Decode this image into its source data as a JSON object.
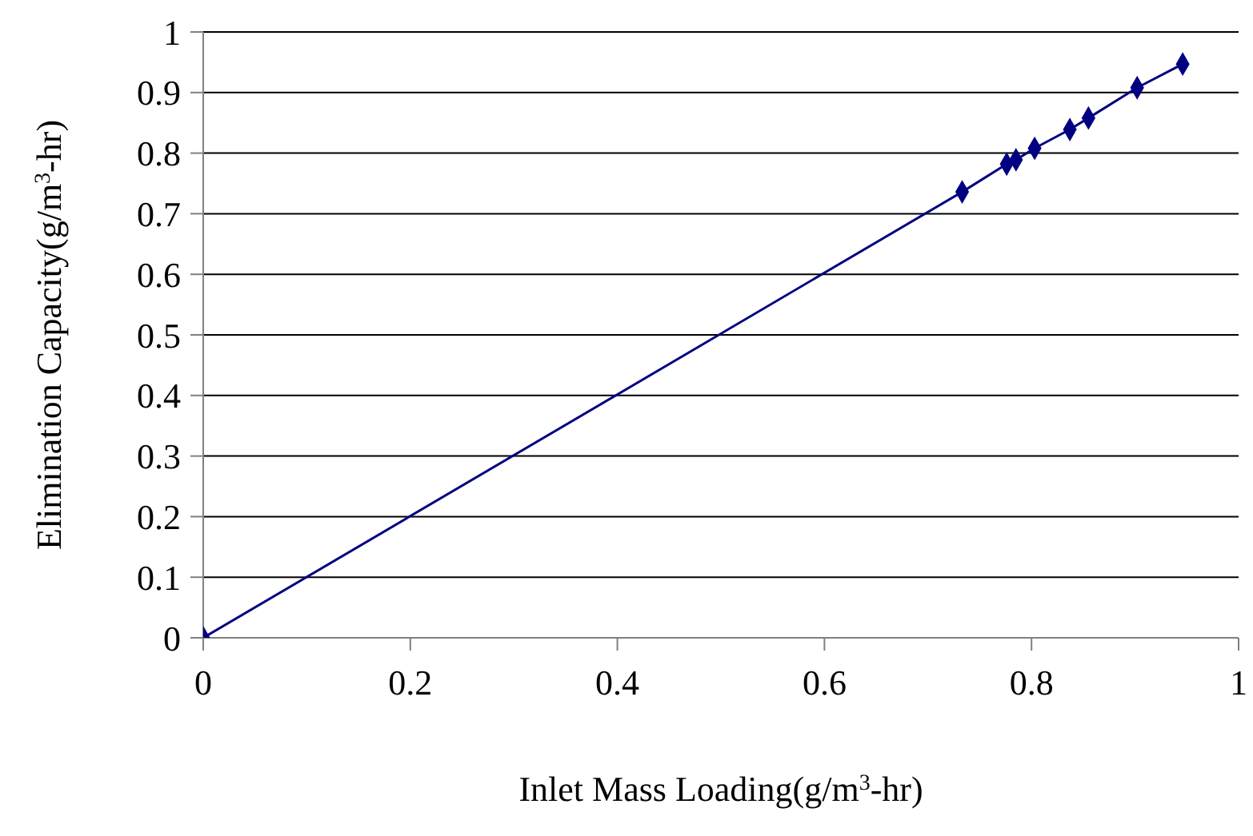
{
  "chart_data": {
    "type": "line",
    "xlabel": "Inlet Mass Loading(g/m$^{3}$-hr)",
    "ylabel": "Elimination Capacity(g/m$^{3}$-hr)",
    "x": [
      0,
      0.733,
      0.776,
      0.785,
      0.803,
      0.837,
      0.855,
      0.902,
      0.946
    ],
    "series": [
      {
        "color": "#000080",
        "values": [
          0,
          0.736,
          0.782,
          0.789,
          0.808,
          0.839,
          0.858,
          0.908,
          0.947
        ]
      }
    ],
    "xlim": [
      0,
      1
    ],
    "xticks": [
      0,
      0.2,
      0.4,
      0.6,
      0.8,
      1
    ],
    "ylim": [
      0,
      1
    ],
    "yticks": [
      0,
      0.1,
      0.2,
      0.3,
      0.4,
      0.5,
      0.6,
      0.7,
      0.8,
      0.9,
      1
    ],
    "grid": "y",
    "marker": "diamond",
    "line_style": "solid",
    "legend": false
  }
}
